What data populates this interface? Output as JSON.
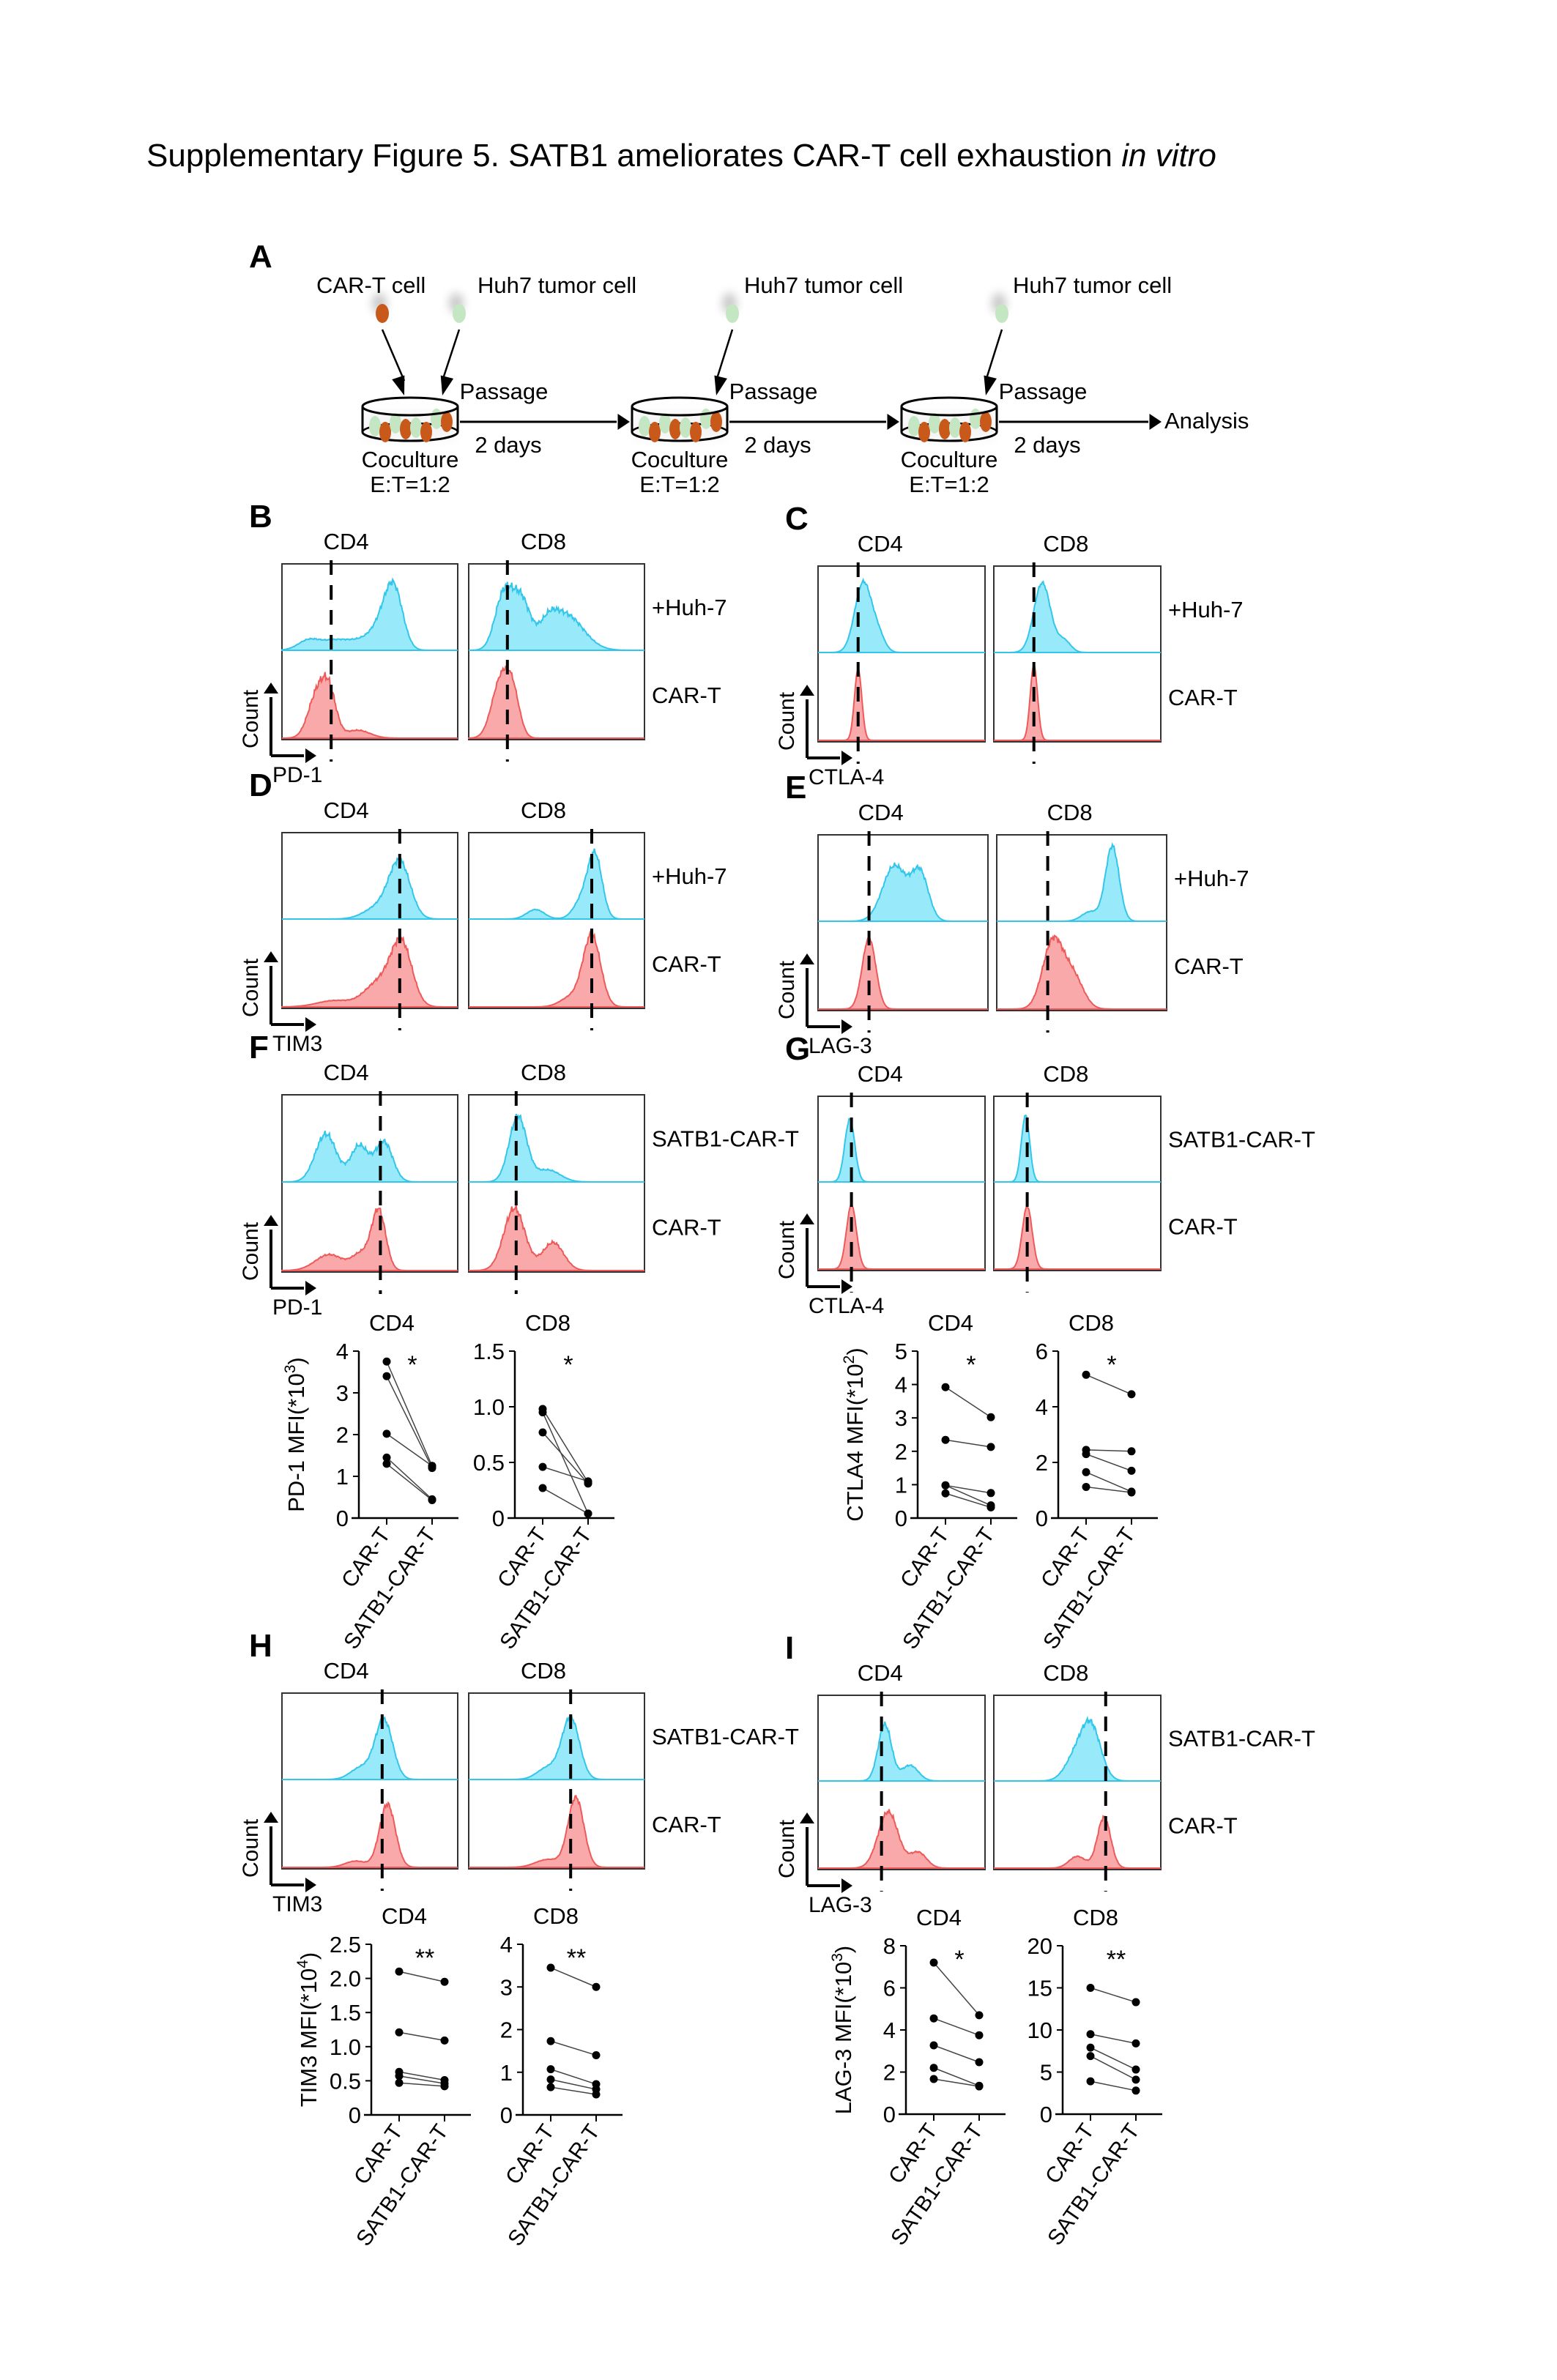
{
  "title": {
    "main": "Supplementary Figure 5. SATB1 ameliorates CAR-T cell exhaustion ",
    "italic": "in vitro"
  },
  "colors": {
    "satb1_or_huh7_fill": "#98EAFB",
    "satb1_or_huh7_line": "#33C6EA",
    "cart_fill": "#F9A9A9",
    "cart_line": "#EE5A5A",
    "car_t_cell": "#C8591A",
    "tumor_cell": "#C5E6C2"
  },
  "panel_a": {
    "letter": "A",
    "cell_labels": [
      "CAR-T cell",
      "Huh7 tumor cell",
      "Huh7 tumor cell",
      "Huh7 tumor cell"
    ],
    "stages": [
      {
        "dish_label": "Coculture",
        "ratio": "E:T=1:2",
        "step_top": "Passage",
        "step_bottom": "2 days"
      },
      {
        "dish_label": "Coculture",
        "ratio": "E:T=1:2",
        "step_top": "Passage",
        "step_bottom": "2 days"
      },
      {
        "dish_label": "Coculture",
        "ratio": "E:T=1:2",
        "step_top": "Passage",
        "step_bottom": "2 days"
      }
    ],
    "final": "Analysis"
  },
  "histogram_panels": [
    {
      "letter": "B",
      "marker": "PD-1",
      "row_labels": [
        "+Huh-7",
        "CAR-T"
      ],
      "columns": [
        "CD4",
        "CD8"
      ],
      "count_label": "Count"
    },
    {
      "letter": "C",
      "marker": "CTLA-4",
      "row_labels": [
        "+Huh-7",
        "CAR-T"
      ],
      "columns": [
        "CD4",
        "CD8"
      ],
      "count_label": "Count"
    },
    {
      "letter": "D",
      "marker": "TIM3",
      "row_labels": [
        "+Huh-7",
        "CAR-T"
      ],
      "columns": [
        "CD4",
        "CD8"
      ],
      "count_label": "Count"
    },
    {
      "letter": "E",
      "marker": "LAG-3",
      "row_labels": [
        "+Huh-7",
        "CAR-T"
      ],
      "columns": [
        "CD4",
        "CD8"
      ],
      "count_label": "Count"
    },
    {
      "letter": "F",
      "marker": "PD-1",
      "row_labels": [
        "SATB1-CAR-T",
        "CAR-T"
      ],
      "columns": [
        "CD4",
        "CD8"
      ],
      "count_label": "Count"
    },
    {
      "letter": "G",
      "marker": "CTLA-4",
      "row_labels": [
        "SATB1-CAR-T",
        "CAR-T"
      ],
      "columns": [
        "CD4",
        "CD8"
      ],
      "count_label": "Count"
    },
    {
      "letter": "H",
      "marker": "TIM3",
      "row_labels": [
        "SATB1-CAR-T",
        "CAR-T"
      ],
      "columns": [
        "CD4",
        "CD8"
      ],
      "count_label": "Count"
    },
    {
      "letter": "I",
      "marker": "LAG-3",
      "row_labels": [
        "SATB1-CAR-T",
        "CAR-T"
      ],
      "columns": [
        "CD4",
        "CD8"
      ],
      "count_label": "Count"
    }
  ],
  "chart_data": [
    {
      "type": "scatter",
      "panel": "F",
      "title": "CD4",
      "ylabel": "PD-1 MFI(*10^3)",
      "ylim": [
        0,
        4
      ],
      "yticks": [
        "0",
        "1",
        "2",
        "3",
        "4"
      ],
      "categories": [
        "CAR-T",
        "SATB1-CAR-T"
      ],
      "significance": "*",
      "pairs": [
        [
          3.75,
          1.25
        ],
        [
          3.4,
          1.2
        ],
        [
          2.02,
          1.25
        ],
        [
          1.45,
          0.45
        ],
        [
          1.3,
          0.43
        ]
      ]
    },
    {
      "type": "scatter",
      "panel": "F",
      "title": "CD8",
      "ylabel": "",
      "ylim": [
        0,
        1.5
      ],
      "yticks": [
        "0",
        "0.5",
        "1.0",
        "1.5"
      ],
      "categories": [
        "CAR-T",
        "SATB1-CAR-T"
      ],
      "significance": "*",
      "pairs": [
        [
          0.98,
          0.32
        ],
        [
          0.95,
          0.04
        ],
        [
          0.77,
          0.31
        ],
        [
          0.46,
          0.33
        ],
        [
          0.27,
          0.04
        ]
      ]
    },
    {
      "type": "scatter",
      "panel": "G",
      "title": "CD4",
      "ylabel": "CTLA4 MFI(*10^2)",
      "ylim": [
        0,
        5
      ],
      "yticks": [
        "0",
        "1",
        "2",
        "3",
        "4",
        "5"
      ],
      "categories": [
        "CAR-T",
        "SATB1-CAR-T"
      ],
      "significance": "*",
      "pairs": [
        [
          3.92,
          3.02
        ],
        [
          2.34,
          2.13
        ],
        [
          0.98,
          0.75
        ],
        [
          0.98,
          0.38
        ],
        [
          0.74,
          0.32
        ]
      ]
    },
    {
      "type": "scatter",
      "panel": "G",
      "title": "CD8",
      "ylabel": "",
      "ylim": [
        0,
        6
      ],
      "yticks": [
        "0",
        "2",
        "4",
        "6"
      ],
      "categories": [
        "CAR-T",
        "SATB1-CAR-T"
      ],
      "significance": "*",
      "pairs": [
        [
          5.15,
          4.45
        ],
        [
          2.45,
          2.4
        ],
        [
          2.3,
          1.7
        ],
        [
          1.65,
          0.95
        ],
        [
          1.12,
          0.92
        ]
      ]
    },
    {
      "type": "scatter",
      "panel": "H",
      "title": "CD4",
      "ylabel": "TIM3 MFI(*10^4)",
      "ylim": [
        0,
        2.5
      ],
      "yticks": [
        "0",
        "0.5",
        "1.0",
        "1.5",
        "2.0",
        "2.5"
      ],
      "categories": [
        "CAR-T",
        "SATB1-CAR-T"
      ],
      "significance": "**",
      "pairs": [
        [
          2.1,
          1.95
        ],
        [
          1.21,
          1.09
        ],
        [
          0.63,
          0.51
        ],
        [
          0.57,
          0.46
        ],
        [
          0.47,
          0.42
        ]
      ]
    },
    {
      "type": "scatter",
      "panel": "H",
      "title": "CD8",
      "ylabel": "",
      "ylim": [
        0,
        4
      ],
      "yticks": [
        "0",
        "1",
        "2",
        "3",
        "4"
      ],
      "categories": [
        "CAR-T",
        "SATB1-CAR-T"
      ],
      "significance": "**",
      "pairs": [
        [
          3.45,
          3.0
        ],
        [
          1.73,
          1.4
        ],
        [
          1.07,
          0.72
        ],
        [
          0.83,
          0.6
        ],
        [
          0.65,
          0.48
        ]
      ]
    },
    {
      "type": "scatter",
      "panel": "I",
      "title": "CD4",
      "ylabel": "LAG-3 MFI(*10^3)",
      "ylim": [
        0,
        8
      ],
      "yticks": [
        "0",
        "2",
        "4",
        "6",
        "8"
      ],
      "categories": [
        "CAR-T",
        "SATB1-CAR-T"
      ],
      "significance": "*",
      "pairs": [
        [
          7.2,
          4.7
        ],
        [
          4.55,
          3.75
        ],
        [
          3.27,
          2.47
        ],
        [
          2.2,
          1.35
        ],
        [
          1.67,
          1.32
        ]
      ]
    },
    {
      "type": "scatter",
      "panel": "I",
      "title": "CD8",
      "ylabel": "",
      "ylim": [
        0,
        20
      ],
      "yticks": [
        "0",
        "5",
        "10",
        "15",
        "20"
      ],
      "categories": [
        "CAR-T",
        "SATB1-CAR-T"
      ],
      "significance": "**",
      "pairs": [
        [
          15.0,
          13.3
        ],
        [
          9.5,
          8.4
        ],
        [
          7.9,
          5.3
        ],
        [
          6.9,
          4.1
        ],
        [
          3.9,
          2.8
        ]
      ]
    }
  ]
}
